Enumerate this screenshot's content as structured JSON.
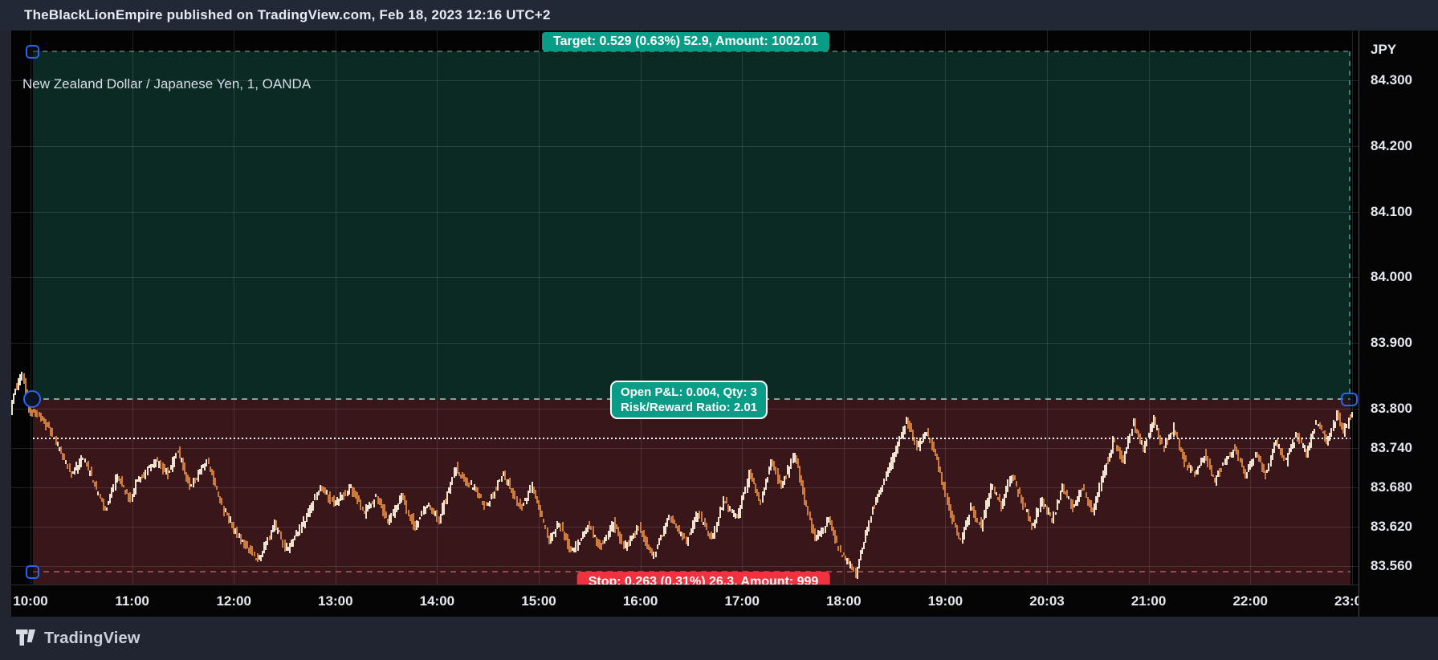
{
  "header": {
    "publish_text": "TheBlackLionEmpire published on TradingView.com, Feb 18, 2023 12:16 UTC+2"
  },
  "chart": {
    "title": "New Zealand Dollar / Japanese Yen, 1, OANDA",
    "target_badge": "Target: 0.529 (0.63%) 52.9, Amount: 1002.01",
    "stop_badge": "Stop: 0.263 (0.31%) 26.3, Amount: 999",
    "tooltip": {
      "line1": "Open P&L: 0.004, Qty: 3",
      "line2": "Risk/Reward Ratio: 2.01"
    }
  },
  "y_axis": {
    "currency": "JPY"
  },
  "footer": {
    "brand": "TradingView"
  },
  "colors": {
    "teal_badge": "#099c87",
    "red_badge": "#f0323f",
    "green_zone": "#0b2a24",
    "red_zone": "#391619",
    "handle_blue": "#2b63f6",
    "up_bar": "#eee3d1",
    "down_bar": "#cd7b3c",
    "header_bg": "#232836",
    "plot_bg": "#030303",
    "axis_text": "#e5e8ef"
  },
  "chart_data": {
    "type": "ohlc",
    "symbol": "NZDJPY",
    "interval_minutes": 1,
    "exchange": "OANDA",
    "ylabel": "JPY",
    "ylim": [
      83.53,
      84.38
    ],
    "grid": true,
    "price_ticks": [
      {
        "label": "84.300",
        "price": 84.3
      },
      {
        "label": "84.200",
        "price": 84.2
      },
      {
        "label": "84.100",
        "price": 84.1
      },
      {
        "label": "84.000",
        "price": 84.0
      },
      {
        "label": "83.900",
        "price": 83.9
      },
      {
        "label": "83.800",
        "price": 83.8
      },
      {
        "label": "83.740",
        "price": 83.74
      },
      {
        "label": "83.680",
        "price": 83.68
      },
      {
        "label": "83.620",
        "price": 83.62
      },
      {
        "label": "83.560",
        "price": 83.56
      }
    ],
    "time_ticks": [
      {
        "label": "10:00",
        "hour": 0
      },
      {
        "label": "11:00",
        "hour": 1
      },
      {
        "label": "12:00",
        "hour": 2
      },
      {
        "label": "13:00",
        "hour": 3
      },
      {
        "label": "14:00",
        "hour": 4
      },
      {
        "label": "15:00",
        "hour": 5
      },
      {
        "label": "16:00",
        "hour": 6
      },
      {
        "label": "17:00",
        "hour": 7
      },
      {
        "label": "18:00",
        "hour": 8
      },
      {
        "label": "19:00",
        "hour": 9
      },
      {
        "label": "20:03",
        "hour": 10
      },
      {
        "label": "21:00",
        "hour": 11
      },
      {
        "label": "22:00",
        "hour": 12
      },
      {
        "label": "23:00",
        "hour": 13
      }
    ],
    "position_tool": {
      "entry_price": 83.815,
      "target_price": 84.344,
      "stop_price": 83.552,
      "avg_dotted_price": 83.754,
      "target_offset": 0.529,
      "target_pct": "0.63%",
      "target_ticks": 52.9,
      "target_amount": 1002.01,
      "stop_offset": 0.263,
      "stop_pct": "0.31%",
      "stop_ticks": 26.3,
      "stop_amount": 999,
      "open_pnl": 0.004,
      "qty": 3,
      "risk_reward": 2.01,
      "zone_start_min": 1.5,
      "zone_end_min": 779
    },
    "bars": {
      "start_min": -11,
      "end_min": 780
    },
    "price_path_anchors": [
      [
        -11,
        83.8
      ],
      [
        -8,
        83.83
      ],
      [
        -4,
        83.85
      ],
      [
        0,
        83.8
      ],
      [
        5,
        83.79
      ],
      [
        12,
        83.77
      ],
      [
        25,
        83.7
      ],
      [
        32,
        83.725
      ],
      [
        45,
        83.645
      ],
      [
        52,
        83.7
      ],
      [
        60,
        83.66
      ],
      [
        63,
        83.685
      ],
      [
        75,
        83.72
      ],
      [
        82,
        83.7
      ],
      [
        88,
        83.735
      ],
      [
        95,
        83.68
      ],
      [
        105,
        83.72
      ],
      [
        115,
        83.645
      ],
      [
        125,
        83.6
      ],
      [
        135,
        83.567
      ],
      [
        145,
        83.625
      ],
      [
        152,
        83.585
      ],
      [
        163,
        83.63
      ],
      [
        172,
        83.68
      ],
      [
        180,
        83.655
      ],
      [
        190,
        83.68
      ],
      [
        198,
        83.64
      ],
      [
        205,
        83.665
      ],
      [
        212,
        83.63
      ],
      [
        220,
        83.665
      ],
      [
        228,
        83.62
      ],
      [
        235,
        83.655
      ],
      [
        242,
        83.63
      ],
      [
        252,
        83.71
      ],
      [
        262,
        83.68
      ],
      [
        270,
        83.65
      ],
      [
        280,
        83.7
      ],
      [
        290,
        83.65
      ],
      [
        297,
        83.68
      ],
      [
        307,
        83.6
      ],
      [
        313,
        83.625
      ],
      [
        320,
        83.58
      ],
      [
        330,
        83.62
      ],
      [
        337,
        83.59
      ],
      [
        345,
        83.625
      ],
      [
        352,
        83.59
      ],
      [
        360,
        83.62
      ],
      [
        368,
        83.572
      ],
      [
        378,
        83.635
      ],
      [
        388,
        83.6
      ],
      [
        395,
        83.64
      ],
      [
        403,
        83.6
      ],
      [
        410,
        83.66
      ],
      [
        418,
        83.63
      ],
      [
        425,
        83.7
      ],
      [
        432,
        83.66
      ],
      [
        438,
        83.72
      ],
      [
        444,
        83.68
      ],
      [
        452,
        83.73
      ],
      [
        458,
        83.66
      ],
      [
        464,
        83.6
      ],
      [
        472,
        83.63
      ],
      [
        478,
        83.585
      ],
      [
        488,
        83.548
      ],
      [
        495,
        83.62
      ],
      [
        500,
        83.66
      ],
      [
        506,
        83.7
      ],
      [
        512,
        83.735
      ],
      [
        518,
        83.785
      ],
      [
        524,
        83.74
      ],
      [
        530,
        83.765
      ],
      [
        536,
        83.72
      ],
      [
        544,
        83.64
      ],
      [
        550,
        83.595
      ],
      [
        556,
        83.65
      ],
      [
        562,
        83.62
      ],
      [
        568,
        83.68
      ],
      [
        574,
        83.65
      ],
      [
        580,
        83.7
      ],
      [
        586,
        83.66
      ],
      [
        592,
        83.62
      ],
      [
        598,
        83.66
      ],
      [
        604,
        83.63
      ],
      [
        610,
        83.68
      ],
      [
        616,
        83.65
      ],
      [
        622,
        83.68
      ],
      [
        628,
        83.64
      ],
      [
        634,
        83.7
      ],
      [
        640,
        83.75
      ],
      [
        646,
        83.72
      ],
      [
        652,
        83.78
      ],
      [
        658,
        83.74
      ],
      [
        664,
        83.78
      ],
      [
        670,
        83.74
      ],
      [
        676,
        83.77
      ],
      [
        682,
        83.72
      ],
      [
        688,
        83.7
      ],
      [
        694,
        83.73
      ],
      [
        700,
        83.69
      ],
      [
        706,
        83.72
      ],
      [
        712,
        83.74
      ],
      [
        718,
        83.7
      ],
      [
        724,
        83.73
      ],
      [
        730,
        83.7
      ],
      [
        736,
        83.75
      ],
      [
        742,
        83.72
      ],
      [
        748,
        83.76
      ],
      [
        754,
        83.73
      ],
      [
        760,
        83.78
      ],
      [
        766,
        83.75
      ],
      [
        772,
        83.79
      ],
      [
        776,
        83.765
      ],
      [
        778,
        83.775
      ],
      [
        782,
        83.8
      ]
    ]
  }
}
